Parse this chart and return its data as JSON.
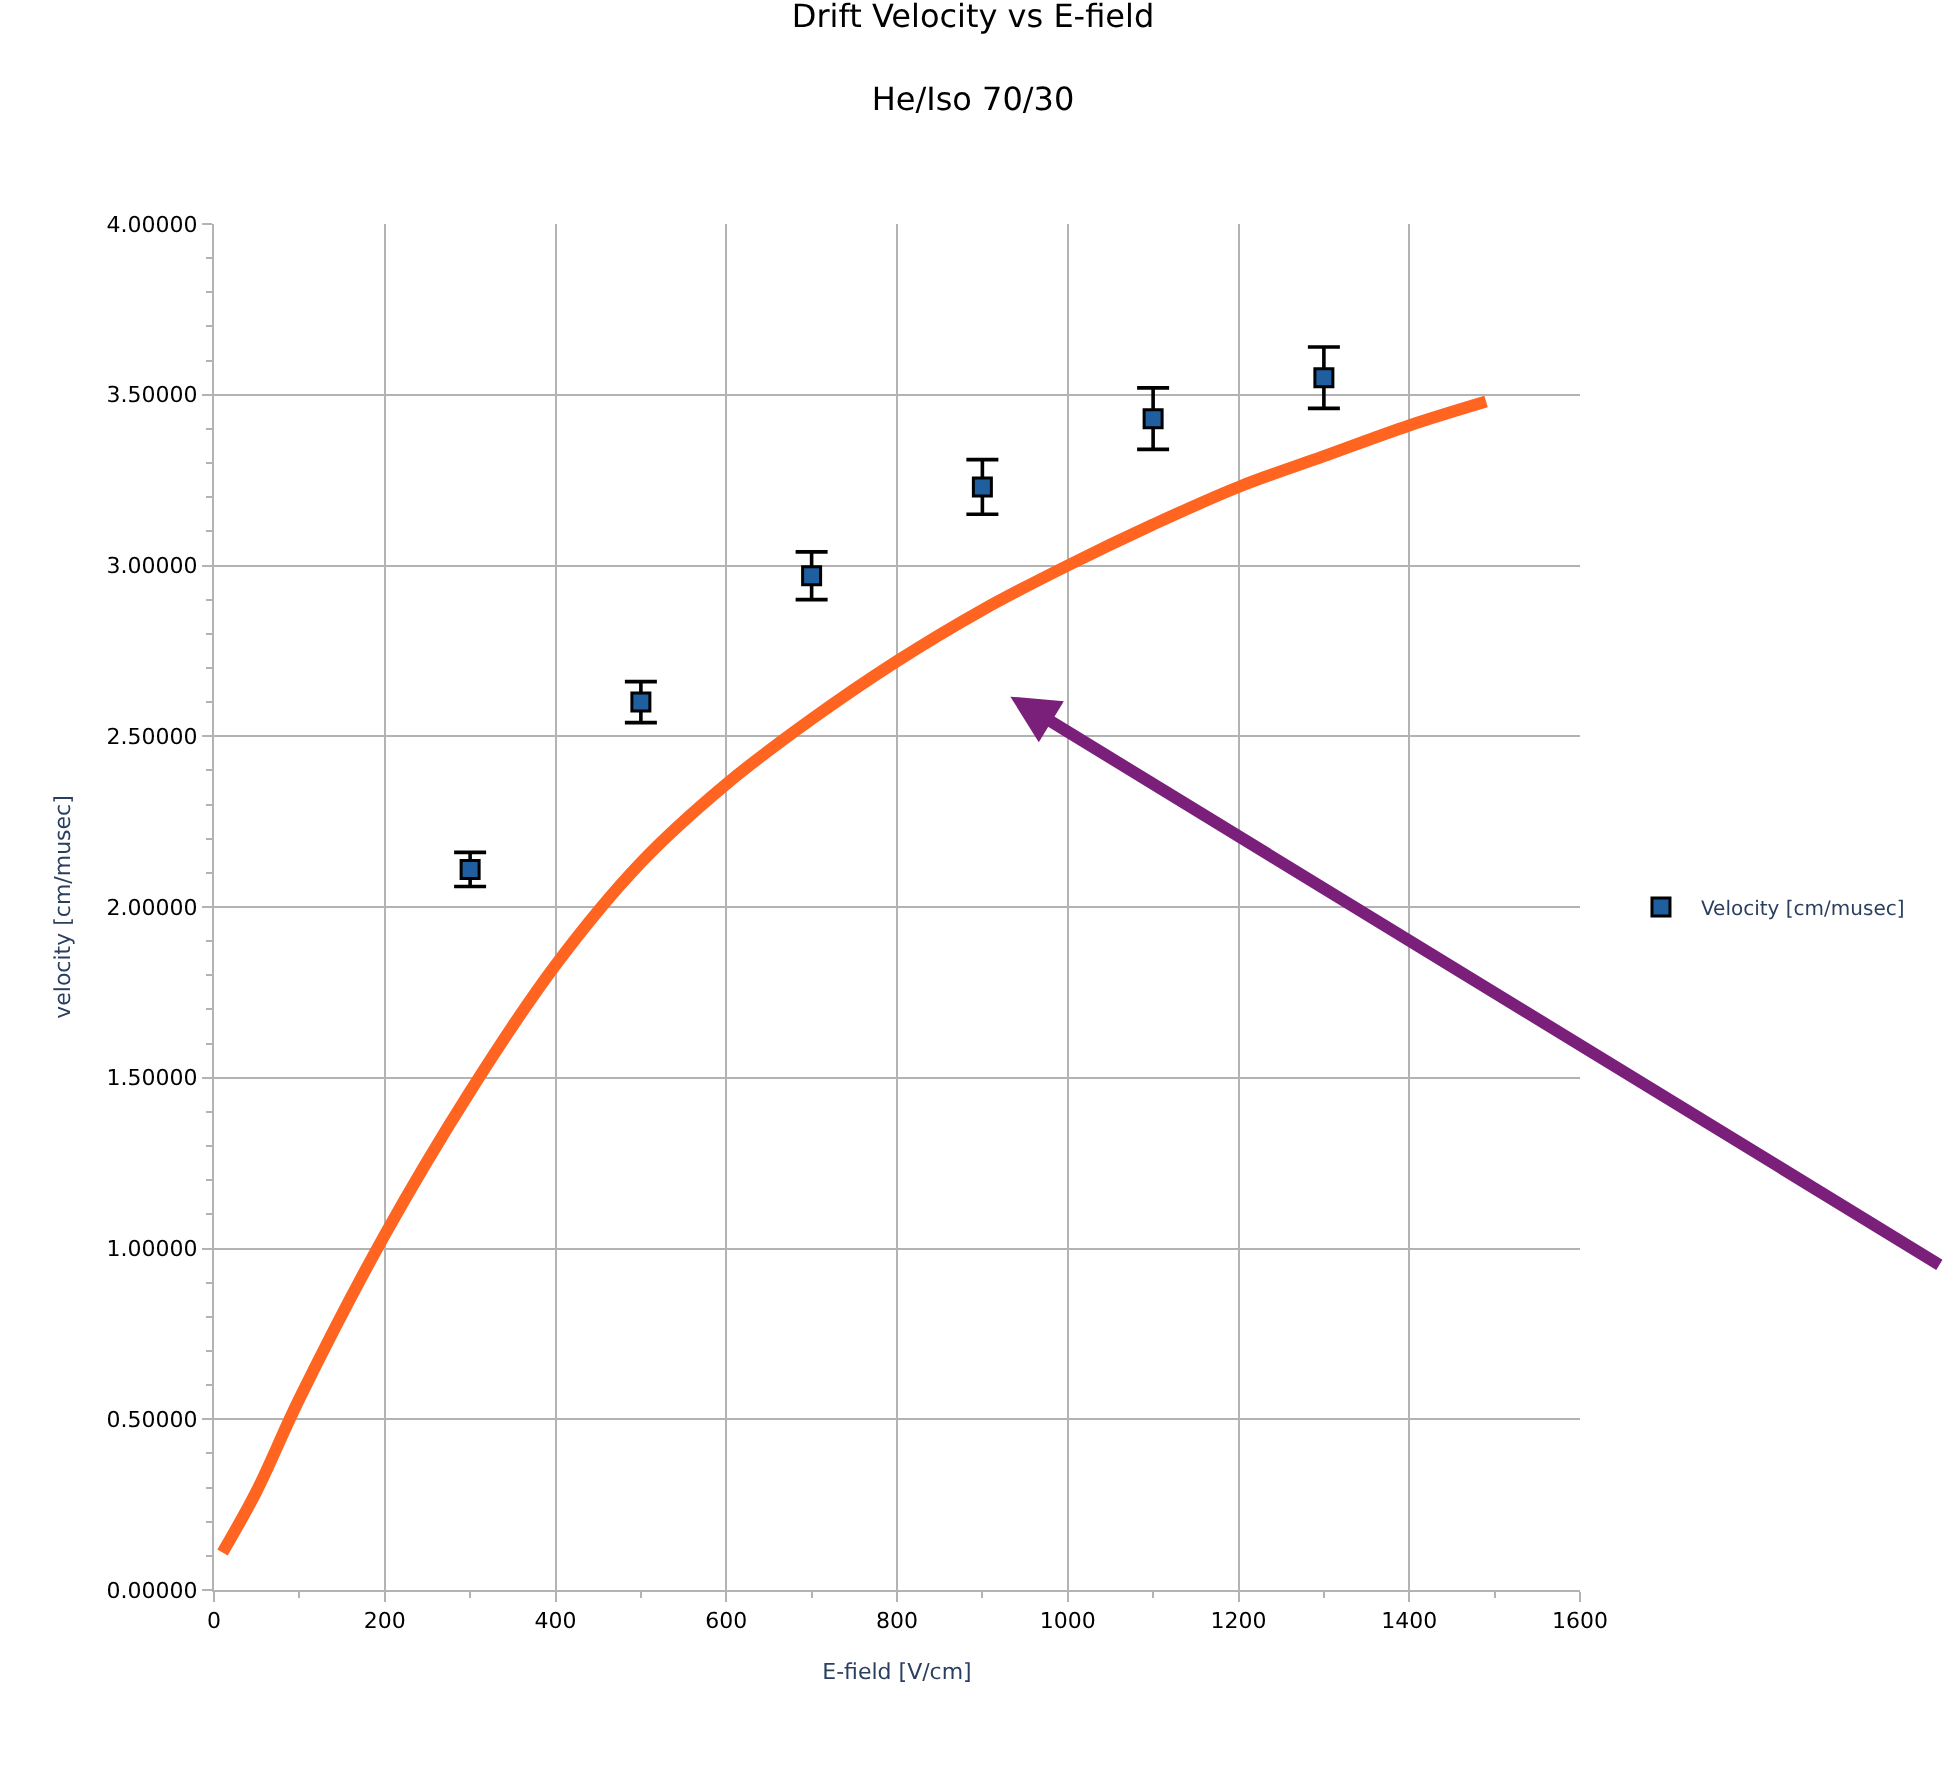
{
  "chart_data": {
    "type": "scatter",
    "title": "Drift Velocity vs E-field",
    "subtitle": "He/Iso 70/30",
    "xlabel": "E-field [V/cm]",
    "ylabel": "velocity [cm/musec]",
    "series": [
      {
        "name": "Velocity [cm/musec]",
        "marker": "square",
        "color": "#1f5f9f",
        "x": [
          300,
          500,
          700,
          900,
          1100,
          1300
        ],
        "values": [
          2.11,
          2.6,
          2.97,
          3.23,
          3.43,
          3.55
        ],
        "errors": [
          0.05,
          0.06,
          0.07,
          0.08,
          0.09,
          0.09
        ]
      },
      {
        "type": "line",
        "marker": "none",
        "color": "#ff6420",
        "x": [
          10,
          50,
          100,
          200,
          300,
          400,
          500,
          600,
          700,
          800,
          900,
          1000,
          1100,
          1200,
          1300,
          1400,
          1490
        ],
        "values": [
          0.11,
          0.29,
          0.56,
          1.04,
          1.46,
          1.83,
          2.13,
          2.36,
          2.55,
          2.72,
          2.87,
          3.0,
          3.12,
          3.23,
          3.32,
          3.41,
          3.48
        ]
      }
    ],
    "xlim": [
      0,
      1600
    ],
    "xticks": [
      0,
      200,
      400,
      600,
      800,
      1000,
      1200,
      1400,
      1600
    ],
    "ylim": [
      0,
      4
    ],
    "yticks": [
      {
        "value": 0,
        "label": "0.00000"
      },
      {
        "value": 0.5,
        "label": "0.50000"
      },
      {
        "value": 1,
        "label": "1.00000"
      },
      {
        "value": 1.5,
        "label": "1.50000"
      },
      {
        "value": 2,
        "label": "2.00000"
      },
      {
        "value": 2.5,
        "label": "2.50000"
      },
      {
        "value": 3,
        "label": "3.00000"
      },
      {
        "value": 3.5,
        "label": "3.50000"
      },
      {
        "value": 4,
        "label": "4.00000"
      }
    ],
    "grid": true,
    "legend": "right"
  }
}
